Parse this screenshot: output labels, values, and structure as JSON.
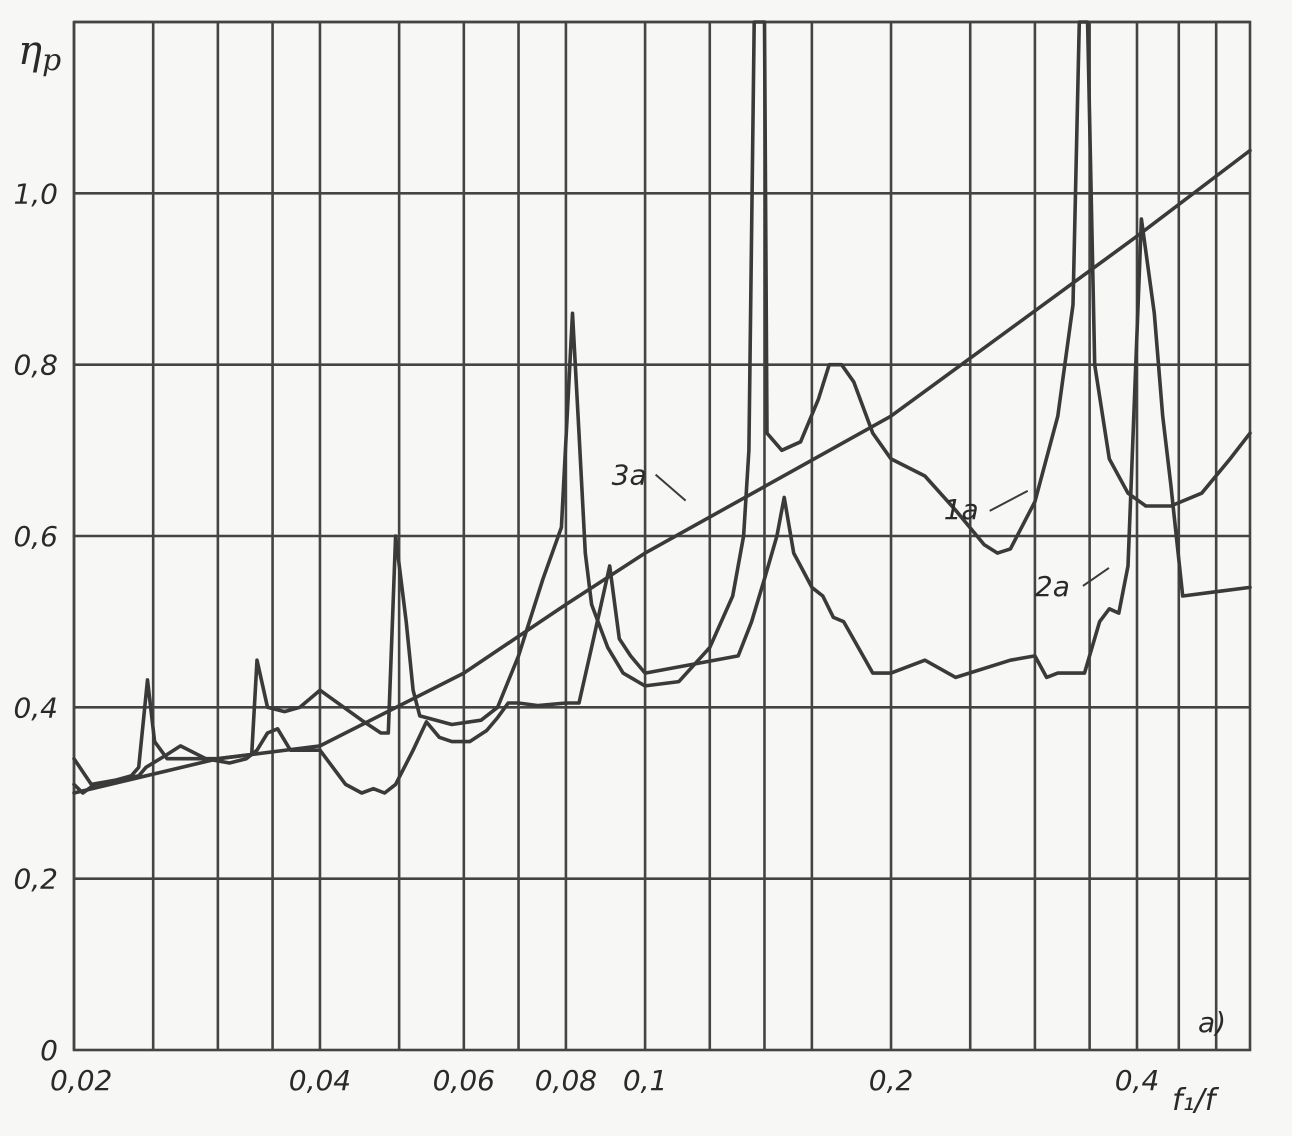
{
  "chart_data": {
    "type": "line",
    "ylabel_main": "η",
    "ylabel_sub": "p",
    "xlabel": "f₁/f",
    "panel_label": "a)",
    "x_scale": "log",
    "xlim": [
      0.02,
      0.55
    ],
    "ylim": [
      0,
      1.2
    ],
    "grid": true,
    "y_ticks": [
      {
        "value": 0,
        "label": "0"
      },
      {
        "value": 0.2,
        "label": "0,2"
      },
      {
        "value": 0.4,
        "label": "0,4"
      },
      {
        "value": 0.6,
        "label": "0,6"
      },
      {
        "value": 0.8,
        "label": "0,8"
      },
      {
        "value": 1.0,
        "label": "1,0"
      }
    ],
    "x_ticks": [
      {
        "value": 0.02,
        "label": "0,02"
      },
      {
        "value": 0.04,
        "label": "0,04"
      },
      {
        "value": 0.06,
        "label": "0,06"
      },
      {
        "value": 0.08,
        "label": "0,08"
      },
      {
        "value": 0.1,
        "label": "0,1"
      },
      {
        "value": 0.2,
        "label": "0,2"
      },
      {
        "value": 0.4,
        "label": "0,4"
      }
    ],
    "x_gridlines": [
      0.02,
      0.025,
      0.03,
      0.035,
      0.04,
      0.05,
      0.06,
      0.07,
      0.08,
      0.1,
      0.12,
      0.14,
      0.16,
      0.2,
      0.25,
      0.3,
      0.35,
      0.4,
      0.45,
      0.5
    ],
    "series": [
      {
        "name": "1a",
        "label_at": {
          "x": 0.232,
          "y": 0.62
        },
        "points": [
          [
            0.02,
            0.31
          ],
          [
            0.0205,
            0.3
          ],
          [
            0.0212,
            0.31
          ],
          [
            0.0225,
            0.315
          ],
          [
            0.0235,
            0.32
          ],
          [
            0.024,
            0.33
          ],
          [
            0.0246,
            0.432
          ],
          [
            0.0251,
            0.36
          ],
          [
            0.026,
            0.34
          ],
          [
            0.0275,
            0.34
          ],
          [
            0.03,
            0.34
          ],
          [
            0.033,
            0.345
          ],
          [
            0.0335,
            0.455
          ],
          [
            0.0345,
            0.4
          ],
          [
            0.0362,
            0.395
          ],
          [
            0.0378,
            0.4
          ],
          [
            0.04,
            0.42
          ],
          [
            0.045,
            0.385
          ],
          [
            0.0475,
            0.37
          ],
          [
            0.0485,
            0.37
          ],
          [
            0.0495,
            0.6
          ],
          [
            0.051,
            0.5
          ],
          [
            0.052,
            0.42
          ],
          [
            0.053,
            0.39
          ],
          [
            0.058,
            0.38
          ],
          [
            0.063,
            0.385
          ],
          [
            0.066,
            0.4
          ],
          [
            0.07,
            0.46
          ],
          [
            0.075,
            0.55
          ],
          [
            0.079,
            0.61
          ],
          [
            0.0815,
            0.86
          ],
          [
            0.083,
            0.72
          ],
          [
            0.0845,
            0.58
          ],
          [
            0.086,
            0.52
          ],
          [
            0.09,
            0.47
          ],
          [
            0.094,
            0.44
          ],
          [
            0.1,
            0.425
          ],
          [
            0.11,
            0.43
          ],
          [
            0.12,
            0.47
          ],
          [
            0.128,
            0.53
          ],
          [
            0.132,
            0.6
          ],
          [
            0.134,
            0.7
          ],
          [
            0.136,
            1.2
          ],
          [
            0.14,
            1.2
          ],
          [
            0.141,
            0.72
          ],
          [
            0.147,
            0.7
          ],
          [
            0.155,
            0.71
          ],
          [
            0.163,
            0.76
          ],
          [
            0.168,
            0.8
          ],
          [
            0.174,
            0.8
          ],
          [
            0.18,
            0.78
          ],
          [
            0.19,
            0.72
          ],
          [
            0.2,
            0.69
          ],
          [
            0.22,
            0.67
          ],
          [
            0.24,
            0.63
          ],
          [
            0.26,
            0.59
          ],
          [
            0.27,
            0.58
          ],
          [
            0.28,
            0.585
          ],
          [
            0.3,
            0.64
          ],
          [
            0.32,
            0.74
          ],
          [
            0.334,
            0.87
          ],
          [
            0.34,
            1.2
          ],
          [
            0.348,
            1.2
          ],
          [
            0.355,
            0.8
          ],
          [
            0.37,
            0.69
          ],
          [
            0.39,
            0.65
          ],
          [
            0.41,
            0.635
          ],
          [
            0.44,
            0.635
          ],
          [
            0.48,
            0.65
          ],
          [
            0.52,
            0.69
          ],
          [
            0.55,
            0.72
          ]
        ]
      },
      {
        "name": "2a",
        "label_at": {
          "x": 0.3,
          "y": 0.53
        },
        "points": [
          [
            0.02,
            0.34
          ],
          [
            0.021,
            0.31
          ],
          [
            0.0225,
            0.315
          ],
          [
            0.024,
            0.32
          ],
          [
            0.0245,
            0.33
          ],
          [
            0.026,
            0.345
          ],
          [
            0.027,
            0.355
          ],
          [
            0.029,
            0.34
          ],
          [
            0.031,
            0.335
          ],
          [
            0.0325,
            0.34
          ],
          [
            0.0335,
            0.35
          ],
          [
            0.0345,
            0.37
          ],
          [
            0.0355,
            0.375
          ],
          [
            0.0368,
            0.35
          ],
          [
            0.04,
            0.35
          ],
          [
            0.043,
            0.31
          ],
          [
            0.045,
            0.3
          ],
          [
            0.0465,
            0.305
          ],
          [
            0.048,
            0.3
          ],
          [
            0.0495,
            0.31
          ],
          [
            0.052,
            0.35
          ],
          [
            0.054,
            0.383
          ],
          [
            0.056,
            0.365
          ],
          [
            0.058,
            0.36
          ],
          [
            0.061,
            0.36
          ],
          [
            0.064,
            0.373
          ],
          [
            0.066,
            0.388
          ],
          [
            0.068,
            0.405
          ],
          [
            0.07,
            0.405
          ],
          [
            0.074,
            0.402
          ],
          [
            0.08,
            0.405
          ],
          [
            0.083,
            0.405
          ],
          [
            0.086,
            0.47
          ],
          [
            0.0905,
            0.565
          ],
          [
            0.093,
            0.48
          ],
          [
            0.096,
            0.46
          ],
          [
            0.1,
            0.44
          ],
          [
            0.13,
            0.46
          ],
          [
            0.135,
            0.5
          ],
          [
            0.14,
            0.55
          ],
          [
            0.145,
            0.6
          ],
          [
            0.148,
            0.645
          ],
          [
            0.152,
            0.58
          ],
          [
            0.155,
            0.565
          ],
          [
            0.16,
            0.54
          ],
          [
            0.165,
            0.53
          ],
          [
            0.17,
            0.505
          ],
          [
            0.175,
            0.5
          ],
          [
            0.19,
            0.44
          ],
          [
            0.2,
            0.44
          ],
          [
            0.22,
            0.455
          ],
          [
            0.24,
            0.435
          ],
          [
            0.28,
            0.455
          ],
          [
            0.3,
            0.46
          ],
          [
            0.31,
            0.435
          ],
          [
            0.32,
            0.44
          ],
          [
            0.33,
            0.44
          ],
          [
            0.345,
            0.44
          ],
          [
            0.36,
            0.5
          ],
          [
            0.37,
            0.515
          ],
          [
            0.38,
            0.51
          ],
          [
            0.39,
            0.565
          ],
          [
            0.405,
            0.97
          ],
          [
            0.42,
            0.86
          ],
          [
            0.43,
            0.74
          ],
          [
            0.44,
            0.66
          ],
          [
            0.455,
            0.53
          ],
          [
            0.5,
            0.535
          ],
          [
            0.55,
            0.54
          ]
        ]
      },
      {
        "name": "3a",
        "label_at": {
          "x": 0.091,
          "y": 0.66
        },
        "points": [
          [
            0.02,
            0.3
          ],
          [
            0.03,
            0.34
          ],
          [
            0.04,
            0.355
          ],
          [
            0.06,
            0.44
          ],
          [
            0.08,
            0.52
          ],
          [
            0.1,
            0.58
          ],
          [
            0.2,
            0.74
          ],
          [
            0.4,
            0.95
          ],
          [
            0.55,
            1.05
          ]
        ]
      }
    ]
  }
}
